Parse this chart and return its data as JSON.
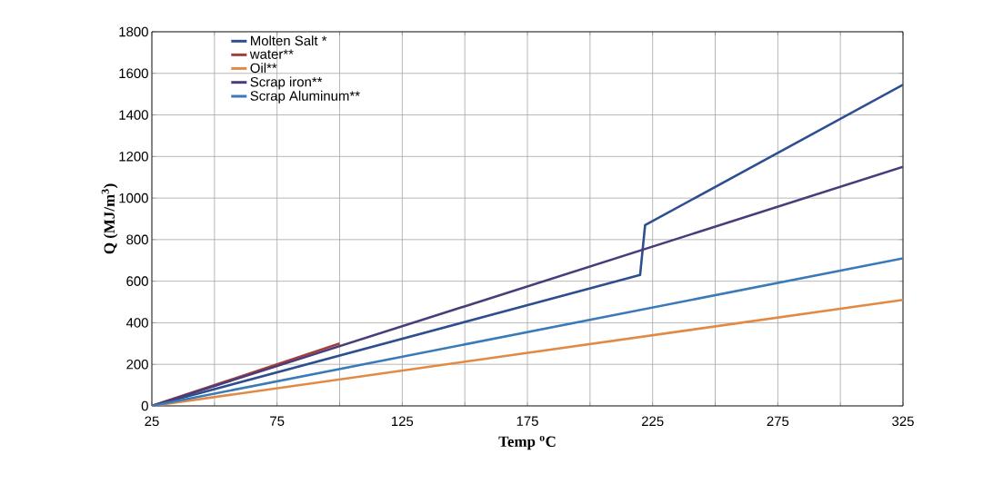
{
  "chart_data": {
    "type": "line",
    "xlabel": "Temp $^{o}$C",
    "ylabel": "Q (MJ/m$^{3}$)",
    "series": [
      {
        "name": "Molten Salt *",
        "color": "#2e4f8f",
        "x": [
          25,
          220,
          222,
          325
        ],
        "values": [
          0,
          630,
          870,
          1545
        ]
      },
      {
        "name": "water**",
        "color": "#a0403c",
        "x": [
          25,
          100
        ],
        "values": [
          0,
          300
        ]
      },
      {
        "name": "Oil**",
        "color": "#e08a45",
        "x": [
          25,
          325
        ],
        "values": [
          0,
          510
        ]
      },
      {
        "name": "Scrap iron**",
        "color": "#4b3b7a",
        "x": [
          25,
          325
        ],
        "values": [
          0,
          1150
        ]
      },
      {
        "name": "Scrap Aluminum**",
        "color": "#3a7ab8",
        "x": [
          25,
          325
        ],
        "values": [
          0,
          710
        ]
      }
    ],
    "xlim": [
      25,
      325
    ],
    "ylim": [
      0,
      1800
    ],
    "xticks": [
      25,
      {
        "value": 50,
        "label": null
      },
      75,
      {
        "value": 100,
        "label": null
      },
      125,
      {
        "value": 150,
        "label": null
      },
      175,
      {
        "value": 200,
        "label": null
      },
      225,
      {
        "value": 250,
        "label": null
      },
      275,
      {
        "value": 300,
        "label": null
      },
      325
    ],
    "yticks": [
      0,
      200,
      400,
      600,
      800,
      1000,
      1200,
      1400,
      1600,
      1800
    ],
    "grid": true,
    "legend": "top left",
    "marker": "none",
    "line_style": "solid"
  }
}
